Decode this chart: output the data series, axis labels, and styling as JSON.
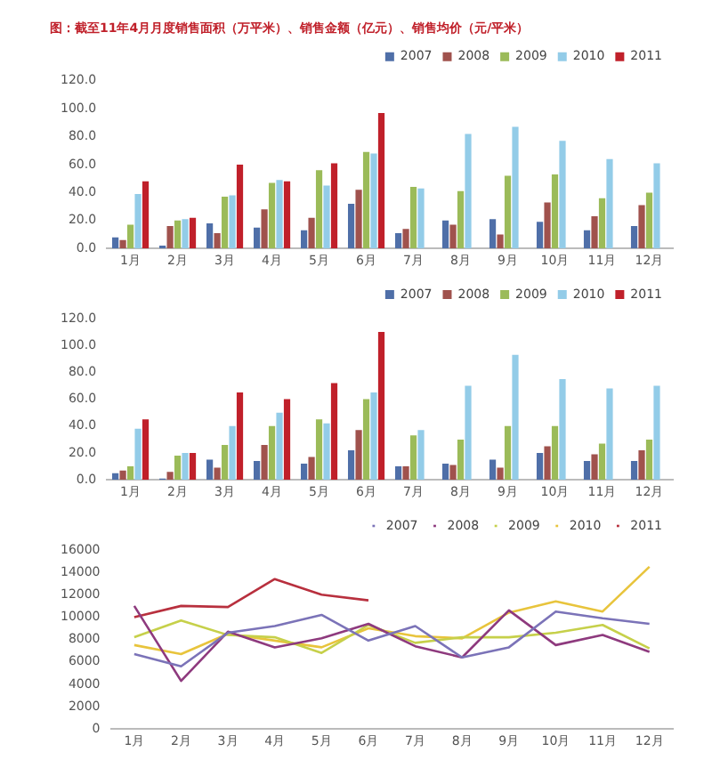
{
  "chart_data": [
    {
      "type": "bar",
      "title": "图：截至11年4月月度销售面积（万平米）、销售金额（亿元）、销售均价（元/平米）",
      "categories": [
        "1月",
        "2月",
        "3月",
        "4月",
        "5月",
        "6月",
        "7月",
        "8月",
        "9月",
        "10月",
        "11月",
        "12月"
      ],
      "series": [
        {
          "name": "2007",
          "color": "#4f6fa8",
          "values": [
            8,
            2,
            18,
            15,
            13,
            32,
            11,
            20,
            21,
            19,
            13,
            16
          ]
        },
        {
          "name": "2008",
          "color": "#a0524d",
          "values": [
            6,
            16,
            11,
            28,
            22,
            42,
            14,
            17,
            10,
            33,
            23,
            31
          ]
        },
        {
          "name": "2009",
          "color": "#9bbb59",
          "values": [
            17,
            20,
            37,
            47,
            56,
            69,
            44,
            41,
            52,
            53,
            36,
            40
          ]
        },
        {
          "name": "2010",
          "color": "#93cce8",
          "values": [
            39,
            21,
            38,
            49,
            45,
            68,
            43,
            82,
            87,
            77,
            64,
            61
          ]
        },
        {
          "name": "2011",
          "color": "#c0202a",
          "values": [
            48,
            22,
            60,
            48,
            61,
            97,
            null,
            null,
            null,
            null,
            null,
            null
          ]
        }
      ],
      "ylim": [
        0,
        120
      ],
      "yticks": [
        {
          "value": 0,
          "label": "0.0"
        },
        {
          "value": 20,
          "label": "20.0"
        },
        {
          "value": 40,
          "label": "40.0"
        },
        {
          "value": 60,
          "label": "60.0"
        },
        {
          "value": 80,
          "label": "80.0"
        },
        {
          "value": 100,
          "label": "100.0"
        },
        {
          "value": 120,
          "label": "120.0"
        }
      ],
      "legend": "top right"
    },
    {
      "type": "bar",
      "categories": [
        "1月",
        "2月",
        "3月",
        "4月",
        "5月",
        "6月",
        "7月",
        "8月",
        "9月",
        "10月",
        "11月",
        "12月"
      ],
      "series": [
        {
          "name": "2007",
          "color": "#4f6fa8",
          "values": [
            5,
            1,
            15,
            14,
            12,
            22,
            10,
            12,
            15,
            20,
            14,
            14
          ]
        },
        {
          "name": "2008",
          "color": "#a0524d",
          "values": [
            7,
            6,
            9,
            26,
            17,
            37,
            10,
            11,
            9,
            25,
            19,
            22
          ]
        },
        {
          "name": "2009",
          "color": "#9bbb59",
          "values": [
            10,
            18,
            26,
            40,
            45,
            60,
            33,
            30,
            40,
            40,
            27,
            30
          ]
        },
        {
          "name": "2010",
          "color": "#93cce8",
          "values": [
            38,
            20,
            40,
            50,
            42,
            65,
            37,
            70,
            93,
            75,
            68,
            70
          ]
        },
        {
          "name": "2011",
          "color": "#c0202a",
          "values": [
            45,
            20,
            65,
            60,
            72,
            110,
            null,
            null,
            null,
            null,
            null,
            null
          ]
        }
      ],
      "ylim": [
        0,
        120
      ],
      "yticks": [
        {
          "value": 0,
          "label": "0.0"
        },
        {
          "value": 20,
          "label": "20.0"
        },
        {
          "value": 40,
          "label": "40.0"
        },
        {
          "value": 60,
          "label": "60.0"
        },
        {
          "value": 80,
          "label": "80.0"
        },
        {
          "value": 100,
          "label": "100.0"
        },
        {
          "value": 120,
          "label": "120.0"
        }
      ],
      "legend": "top right"
    },
    {
      "type": "line",
      "categories": [
        "1月",
        "2月",
        "3月",
        "4月",
        "5月",
        "6月",
        "7月",
        "8月",
        "9月",
        "10月",
        "11月",
        "12月"
      ],
      "series": [
        {
          "name": "2007",
          "color": "#7b73b8",
          "values": [
            6700,
            5600,
            8600,
            9200,
            10200,
            7900,
            9200,
            6400,
            7300,
            10500,
            9900,
            9400
          ]
        },
        {
          "name": "2008",
          "color": "#8e3a7e",
          "values": [
            11000,
            4300,
            8700,
            7300,
            8100,
            9400,
            7400,
            6400,
            10600,
            7500,
            8400,
            6900
          ]
        },
        {
          "name": "2009",
          "color": "#c6d04a",
          "values": [
            8200,
            9700,
            8400,
            8200,
            6800,
            9300,
            7700,
            8200,
            8200,
            8600,
            9300,
            7200
          ]
        },
        {
          "name": "2010",
          "color": "#e8c43c",
          "values": [
            7500,
            6700,
            8500,
            7900,
            7300,
            9000,
            8300,
            8100,
            10400,
            11400,
            10500,
            14500
          ]
        },
        {
          "name": "2011",
          "color": "#b8303e",
          "values": [
            10000,
            11000,
            10900,
            13400,
            12000,
            11500,
            null,
            null,
            null,
            null,
            null,
            null
          ]
        }
      ],
      "ylim": [
        0,
        16000
      ],
      "yticks": [
        0,
        2000,
        4000,
        6000,
        8000,
        10000,
        12000,
        14000,
        16000
      ],
      "legend": "top right",
      "marker": "none",
      "line_style": "solid"
    }
  ]
}
